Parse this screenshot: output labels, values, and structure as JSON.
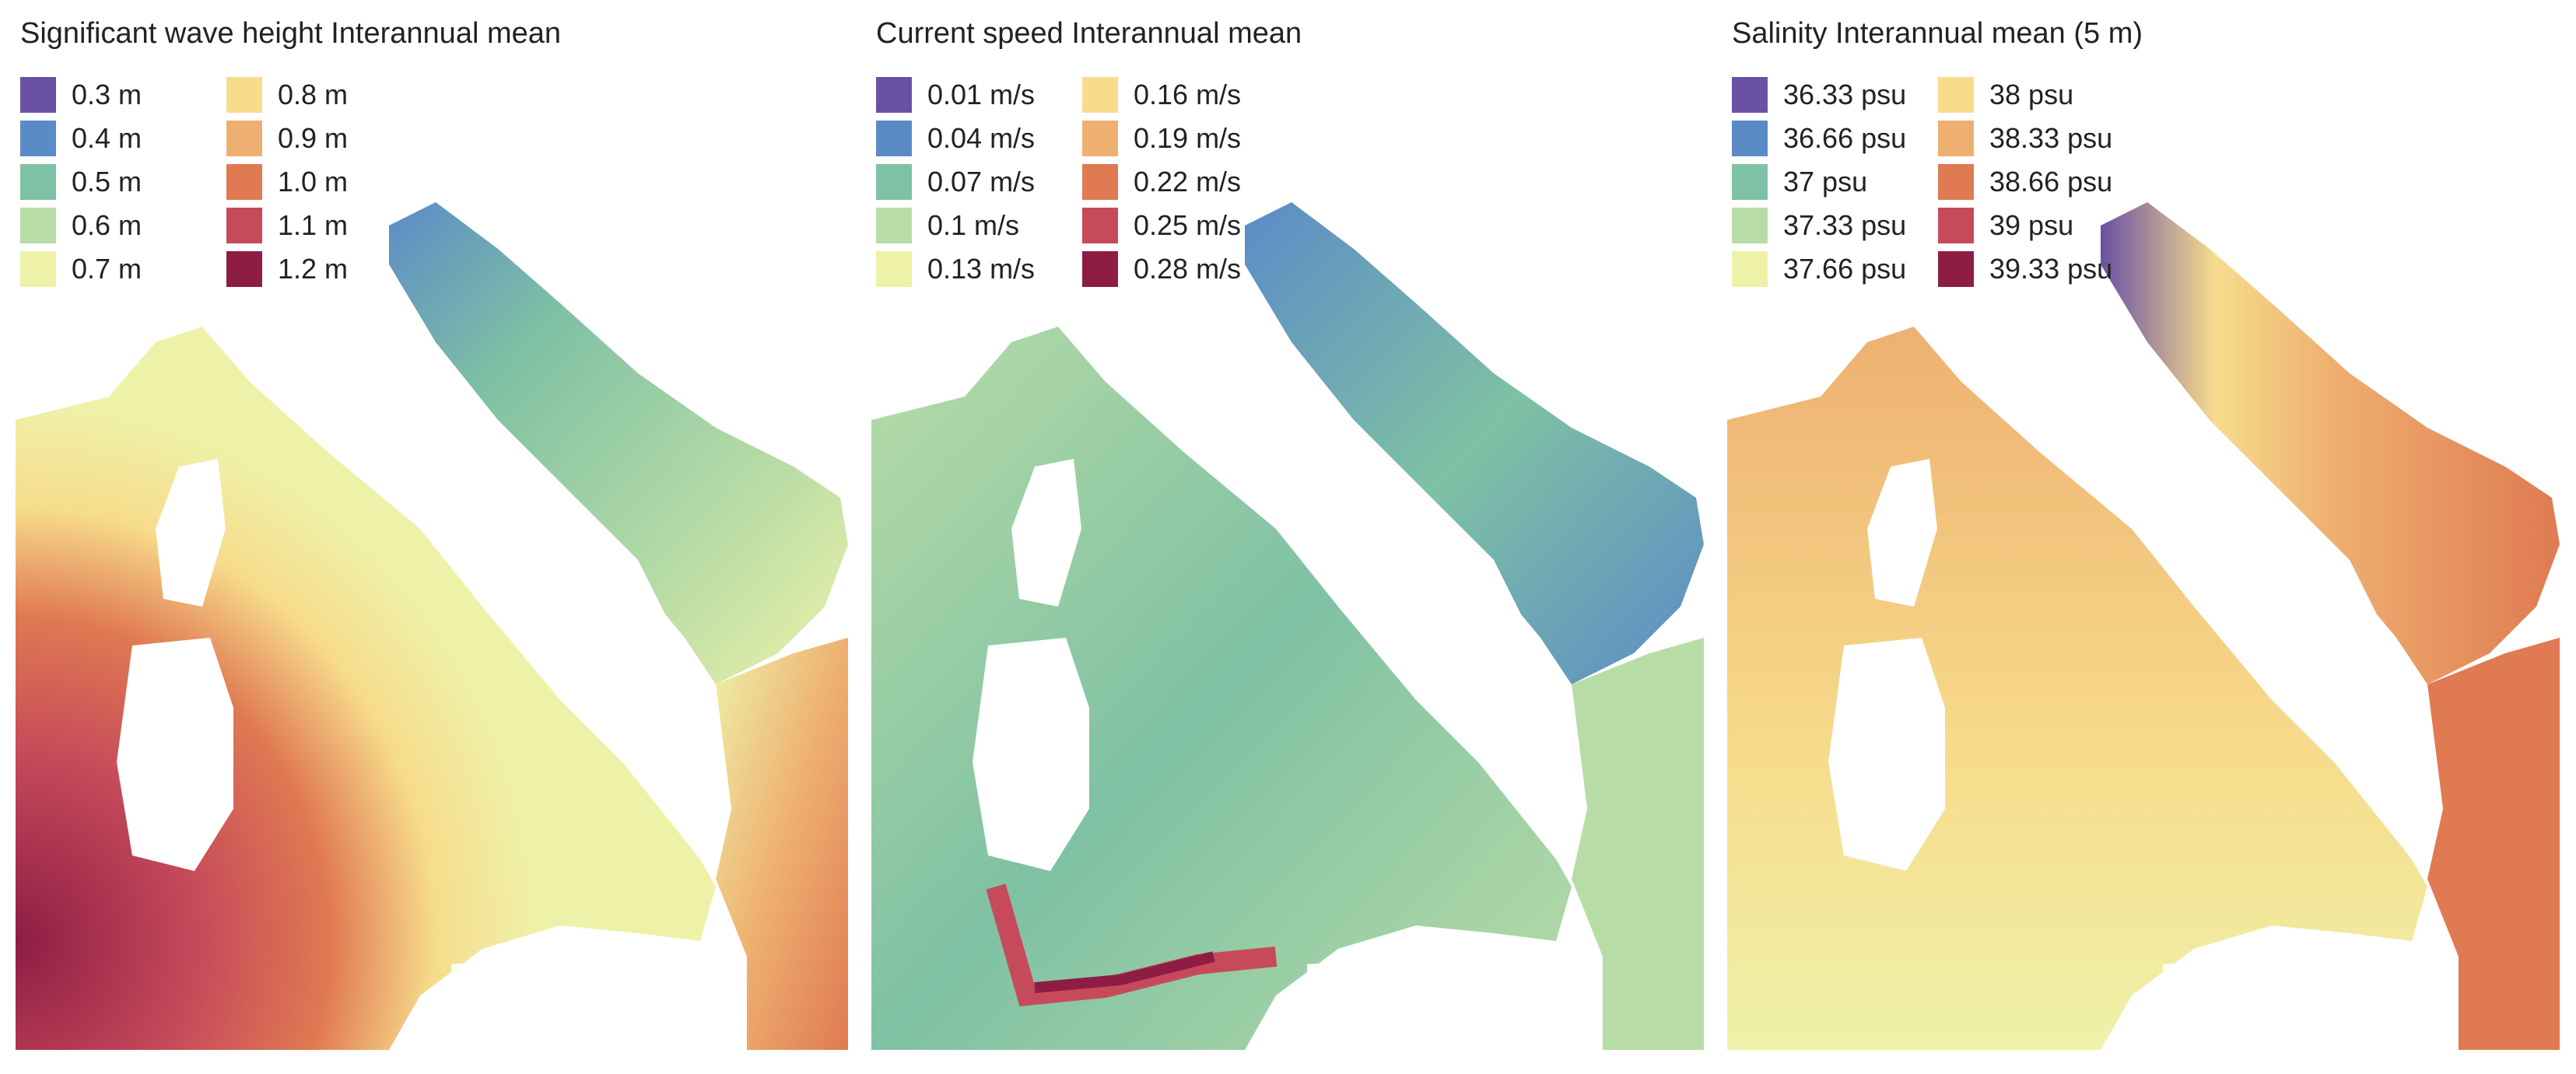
{
  "panels": [
    {
      "title": "Significant wave height Interannual mean",
      "legend": [
        {
          "label": "0.3 m",
          "color": "#6a51a3"
        },
        {
          "label": "0.4 m",
          "color": "#5b8bc7"
        },
        {
          "label": "0.5 m",
          "color": "#7fc1a4"
        },
        {
          "label": "0.6 m",
          "color": "#b8dca6"
        },
        {
          "label": "0.7 m",
          "color": "#eef2a9"
        },
        {
          "label": "0.8 m",
          "color": "#f7dc8c"
        },
        {
          "label": "0.9 m",
          "color": "#eeb070"
        },
        {
          "label": "1.0 m",
          "color": "#e07a52"
        },
        {
          "label": "1.1 m",
          "color": "#c74a5a"
        },
        {
          "label": "1.2 m",
          "color": "#8e1d45"
        }
      ]
    },
    {
      "title": "Current speed Interannual mean",
      "legend": [
        {
          "label": "0.01 m/s",
          "color": "#6a51a3"
        },
        {
          "label": "0.04 m/s",
          "color": "#5b8bc7"
        },
        {
          "label": "0.07 m/s",
          "color": "#7fc1a4"
        },
        {
          "label": "0.1 m/s",
          "color": "#b8dca6"
        },
        {
          "label": "0.13 m/s",
          "color": "#eef2a9"
        },
        {
          "label": "0.16 m/s",
          "color": "#f7dc8c"
        },
        {
          "label": "0.19 m/s",
          "color": "#eeb070"
        },
        {
          "label": "0.22 m/s",
          "color": "#e07a52"
        },
        {
          "label": "0.25 m/s",
          "color": "#c74a5a"
        },
        {
          "label": "0.28 m/s",
          "color": "#8e1d45"
        }
      ]
    },
    {
      "title": "Salinity Interannual mean (5 m)",
      "legend": [
        {
          "label": "36.33 psu",
          "color": "#6a51a3"
        },
        {
          "label": "36.66 psu",
          "color": "#5b8bc7"
        },
        {
          "label": "37 psu",
          "color": "#7fc1a4"
        },
        {
          "label": "37.33 psu",
          "color": "#b8dca6"
        },
        {
          "label": "37.66 psu",
          "color": "#eef2a9"
        },
        {
          "label": "38 psu",
          "color": "#f7dc8c"
        },
        {
          "label": "38.33 psu",
          "color": "#eeb070"
        },
        {
          "label": "38.66 psu",
          "color": "#e07a52"
        },
        {
          "label": "39 psu",
          "color": "#c74a5a"
        },
        {
          "label": "39.33 psu",
          "color": "#8e1d45"
        }
      ]
    }
  ]
}
